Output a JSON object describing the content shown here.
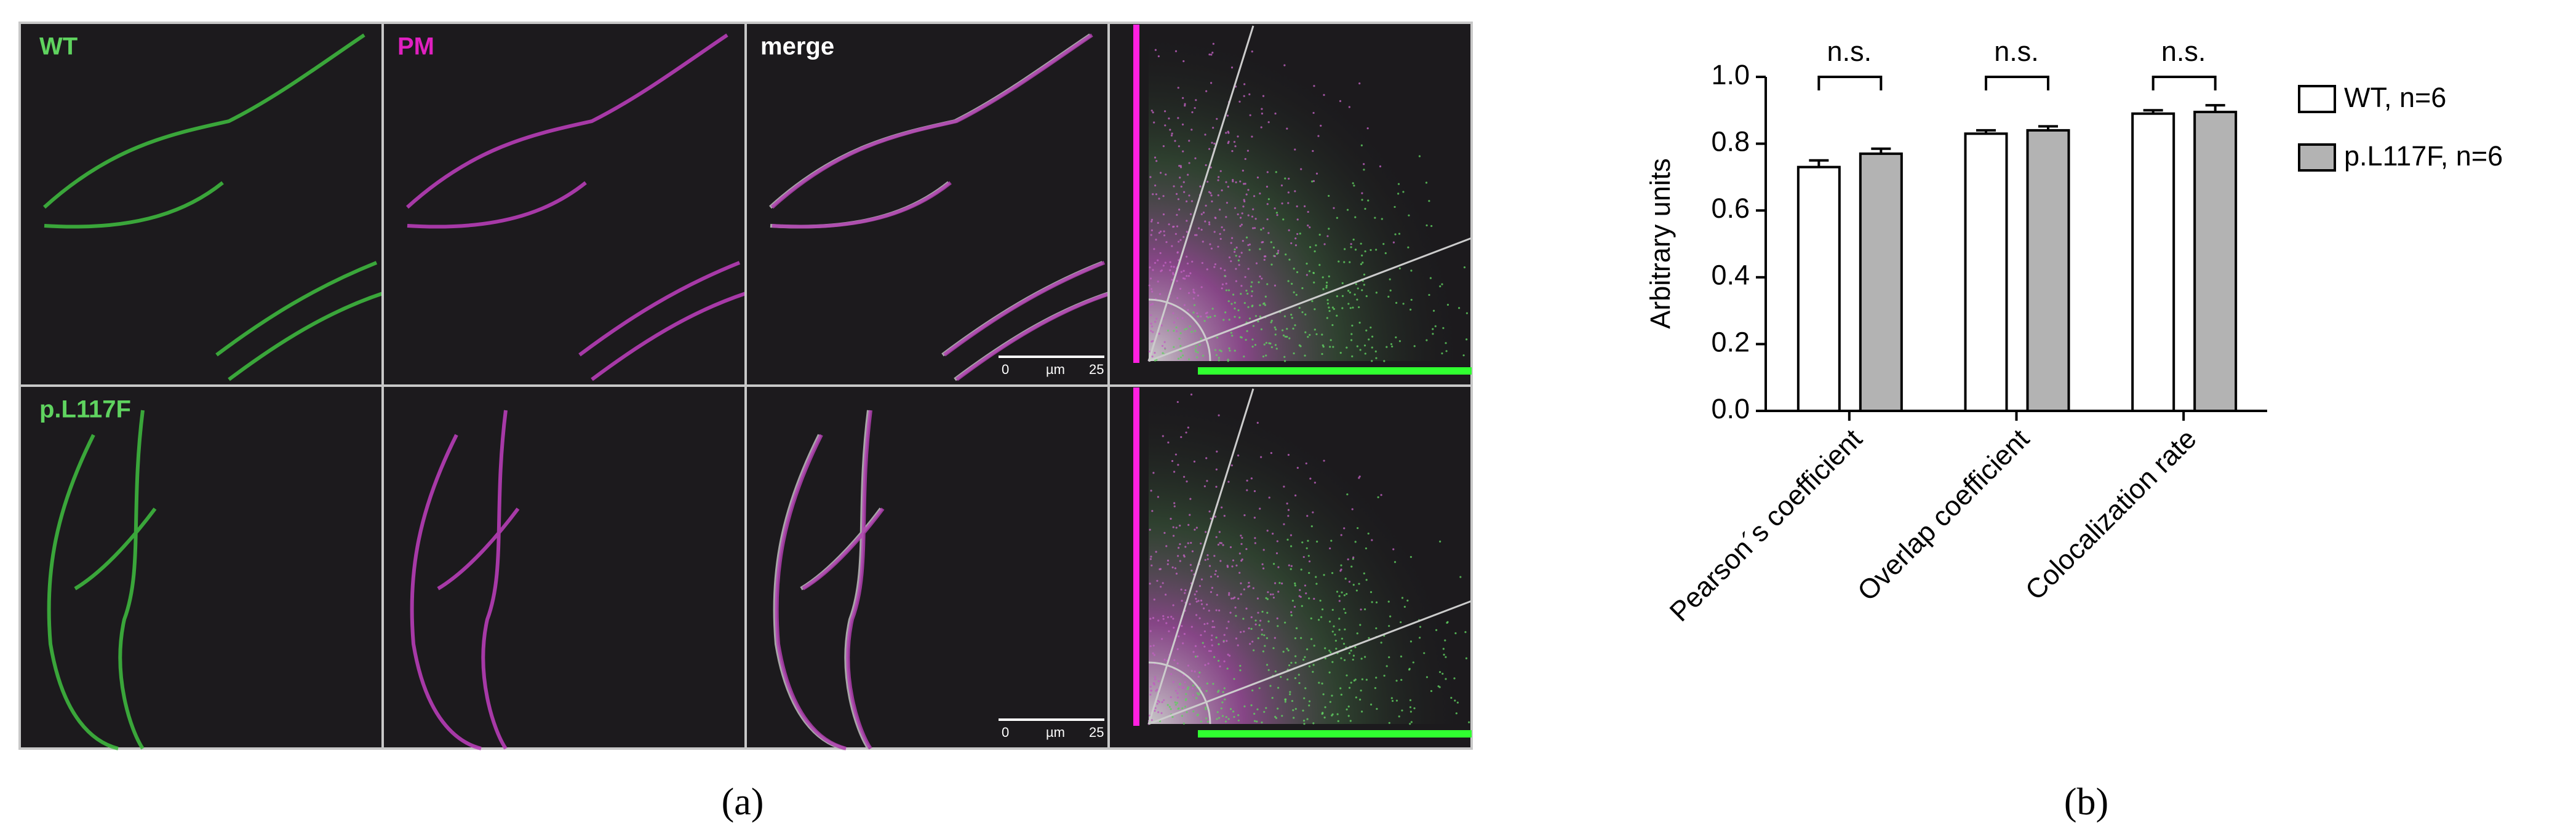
{
  "panel_a": {
    "row_labels": [
      "WT",
      "p.L117F"
    ],
    "column_labels": [
      "PM",
      "merge"
    ],
    "scale_bars": [
      {
        "start": "0",
        "unit": "µm",
        "end": "25"
      },
      {
        "start": "0",
        "unit": "µm",
        "end": "25"
      }
    ],
    "caption": "(a)"
  },
  "panel_b": {
    "caption": "(b)"
  },
  "chart_data": {
    "type": "bar",
    "y_label": "Arbitrary units",
    "categories": [
      "Pearson´s coefficient",
      "Overlap coefficient",
      "Colocalization rate"
    ],
    "series": [
      {
        "name": "WT, n=6",
        "color": "#ffffff",
        "values": [
          0.73,
          0.83,
          0.89
        ],
        "errors": [
          0.02,
          0.01,
          0.01
        ]
      },
      {
        "name": "p.L117F, n=6",
        "color": "#b3b3b3",
        "values": [
          0.77,
          0.84,
          0.895
        ],
        "errors": [
          0.015,
          0.012,
          0.02
        ]
      }
    ],
    "annotations": [
      "n.s.",
      "n.s.",
      "n.s."
    ],
    "ylim": [
      0,
      1
    ],
    "yticks": [
      {
        "value": 0,
        "label": "0.0"
      },
      0.2,
      0.4,
      0.6,
      0.8,
      {
        "value": 1,
        "label": "1.0"
      }
    ]
  }
}
